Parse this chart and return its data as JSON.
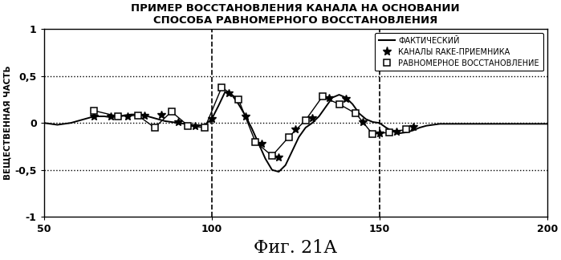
{
  "title": "ПРИМЕР ВОССТАНОВЛЕНИЯ КАНАЛА НА ОСНОВАНИИ\nСПОСОБА РАВНОМЕРНОГО ВОССТАНОВЛЕНИЯ",
  "xlabel": "Фиг. 21А",
  "ylabel": "ВЕЩЕСТВЕННАЯ ЧАСТЬ",
  "xlim": [
    50,
    200
  ],
  "ylim": [
    -1,
    1
  ],
  "yticks": [
    -1,
    -0.5,
    0,
    0.5,
    1
  ],
  "ytick_labels": [
    "-1",
    "-0,5",
    "0",
    "0,5",
    "1"
  ],
  "xticks": [
    50,
    100,
    150,
    200
  ],
  "vlines": [
    100,
    150
  ],
  "dotted_hlines": [
    0.5,
    0.0,
    -0.5
  ],
  "legend_labels": [
    "ФАКТИЧЕСКИЙ",
    "КАНАЛЫ RAKE-ПРИЕМНИКА",
    "РАВНОМЕРНОЕ ВОССТАНОВЛЕНИЕ"
  ],
  "actual_x": [
    50,
    52,
    54,
    56,
    58,
    60,
    62,
    64,
    66,
    68,
    70,
    72,
    74,
    76,
    78,
    80,
    82,
    84,
    86,
    88,
    90,
    92,
    94,
    96,
    98,
    100,
    102,
    104,
    106,
    108,
    110,
    112,
    114,
    116,
    118,
    120,
    122,
    124,
    126,
    128,
    130,
    132,
    134,
    136,
    138,
    140,
    142,
    144,
    146,
    148,
    150,
    152,
    154,
    156,
    158,
    160,
    162,
    164,
    166,
    168,
    170,
    172,
    174,
    176,
    178,
    180,
    182,
    184,
    186,
    188,
    190,
    192,
    194,
    196,
    198,
    200
  ],
  "actual_y": [
    0.0,
    -0.01,
    -0.02,
    -0.01,
    0.0,
    0.02,
    0.04,
    0.06,
    0.07,
    0.07,
    0.06,
    0.07,
    0.08,
    0.09,
    0.09,
    0.08,
    0.06,
    0.04,
    0.02,
    0.01,
    0.0,
    -0.01,
    -0.02,
    -0.03,
    -0.02,
    0.04,
    0.18,
    0.33,
    0.3,
    0.2,
    0.08,
    -0.06,
    -0.22,
    -0.38,
    -0.5,
    -0.52,
    -0.45,
    -0.3,
    -0.15,
    -0.05,
    0.0,
    0.07,
    0.17,
    0.27,
    0.3,
    0.27,
    0.2,
    0.1,
    0.04,
    0.01,
    0.0,
    -0.05,
    -0.09,
    -0.11,
    -0.1,
    -0.08,
    -0.05,
    -0.03,
    -0.02,
    -0.01,
    -0.01,
    -0.01,
    -0.01,
    -0.01,
    -0.01,
    -0.01,
    -0.01,
    -0.01,
    -0.01,
    -0.01,
    -0.01,
    -0.01,
    -0.01,
    -0.01,
    -0.01,
    -0.01
  ],
  "rake_x": [
    65,
    70,
    75,
    80,
    85,
    90,
    95,
    100,
    105,
    110,
    115,
    120,
    125,
    130,
    135,
    140,
    145,
    150,
    155,
    160
  ],
  "rake_y": [
    0.07,
    0.07,
    0.07,
    0.08,
    0.09,
    0.01,
    -0.03,
    0.04,
    0.32,
    0.07,
    -0.22,
    -0.37,
    -0.07,
    0.05,
    0.27,
    0.26,
    0.01,
    -0.11,
    -0.09,
    -0.04
  ],
  "uniform_x": [
    65,
    72,
    78,
    83,
    88,
    93,
    98,
    103,
    108,
    113,
    118,
    123,
    128,
    133,
    138,
    143,
    148,
    153,
    158
  ],
  "uniform_y": [
    0.13,
    0.07,
    0.08,
    -0.05,
    0.12,
    -0.03,
    -0.05,
    0.38,
    0.25,
    -0.2,
    -0.35,
    -0.15,
    0.03,
    0.28,
    0.2,
    0.1,
    -0.12,
    -0.1,
    -0.07
  ]
}
